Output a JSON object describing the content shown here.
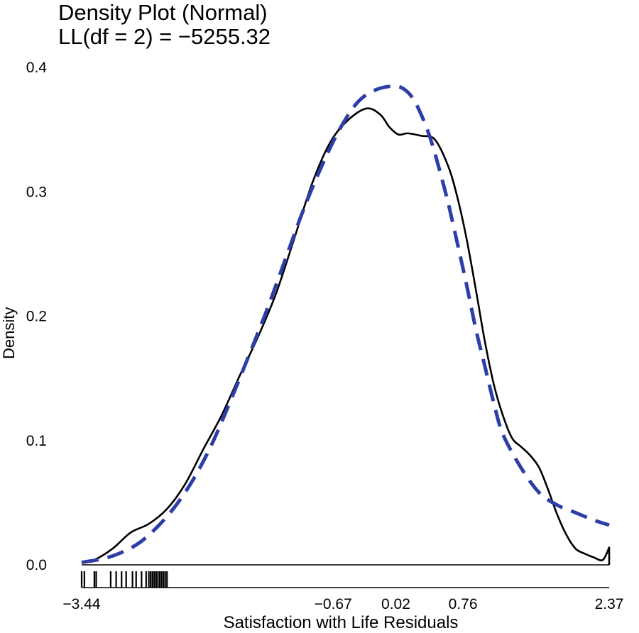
{
  "chart_data": {
    "type": "line",
    "title": "Density Plot (Normal)",
    "subtitle": "LL(df = 2) = −5255.32",
    "xlabel": "Satisfaction with Life Residuals",
    "ylabel": "Density",
    "xlim": [
      -3.44,
      2.37
    ],
    "ylim": [
      0,
      0.4
    ],
    "yticks": [
      0.0,
      0.1,
      0.2,
      0.3,
      0.4
    ],
    "ytick_labels": [
      "0.0",
      "0.1",
      "0.2",
      "0.3",
      "0.4"
    ],
    "xticks": [
      -3.44,
      -0.67,
      0.02,
      0.76,
      2.37
    ],
    "xtick_labels": [
      "−3.44",
      "−0.67",
      "0.02",
      "0.76",
      "2.37"
    ],
    "grid": false,
    "colors": {
      "empirical": "#000000",
      "normal": "#2e3ea8"
    },
    "series": [
      {
        "style": "solid",
        "x": [
          -3.44,
          -3.3,
          -3.1,
          -2.9,
          -2.7,
          -2.5,
          -2.3,
          -2.1,
          -1.9,
          -1.7,
          -1.5,
          -1.3,
          -1.1,
          -0.9,
          -0.7,
          -0.5,
          -0.3,
          -0.15,
          -0.05,
          0.05,
          0.15,
          0.3,
          0.45,
          0.6,
          0.7,
          0.8,
          0.9,
          1.0,
          1.1,
          1.2,
          1.3,
          1.4,
          1.5,
          1.6,
          1.7,
          1.8,
          1.9,
          2.0,
          2.1,
          2.2,
          2.3,
          2.37
        ],
        "y": [
          0.002,
          0.004,
          0.013,
          0.026,
          0.033,
          0.045,
          0.065,
          0.093,
          0.12,
          0.152,
          0.183,
          0.218,
          0.262,
          0.307,
          0.34,
          0.358,
          0.367,
          0.362,
          0.352,
          0.346,
          0.347,
          0.345,
          0.342,
          0.32,
          0.295,
          0.262,
          0.222,
          0.18,
          0.145,
          0.12,
          0.102,
          0.095,
          0.088,
          0.078,
          0.06,
          0.04,
          0.024,
          0.013,
          0.009,
          0.006,
          0.004,
          0.014
        ]
      },
      {
        "style": "dashed",
        "x": [
          -3.44,
          -3.2,
          -3.0,
          -2.8,
          -2.6,
          -2.4,
          -2.2,
          -2.0,
          -1.8,
          -1.6,
          -1.4,
          -1.2,
          -1.0,
          -0.8,
          -0.6,
          -0.4,
          -0.2,
          0.0,
          0.1,
          0.2,
          0.3,
          0.4,
          0.5,
          0.6,
          0.7,
          0.8,
          0.9,
          1.0,
          1.1,
          1.2,
          1.4,
          1.6,
          1.8,
          2.0,
          2.2,
          2.37
        ],
        "y": [
          0.002,
          0.005,
          0.01,
          0.018,
          0.031,
          0.048,
          0.07,
          0.098,
          0.132,
          0.168,
          0.205,
          0.245,
          0.285,
          0.32,
          0.35,
          0.372,
          0.382,
          0.385,
          0.383,
          0.376,
          0.362,
          0.343,
          0.318,
          0.29,
          0.258,
          0.225,
          0.19,
          0.16,
          0.13,
          0.105,
          0.078,
          0.058,
          0.048,
          0.042,
          0.036,
          0.032
        ]
      }
    ],
    "rug": [
      -3.44,
      -3.41,
      -3.3,
      -3.28,
      -3.12,
      -3.06,
      -3.0,
      -2.95,
      -2.88,
      -2.84,
      -2.78,
      -2.73,
      -2.7,
      -2.68,
      -2.66,
      -2.64,
      -2.62,
      -2.6,
      -2.58,
      -2.56,
      -2.54,
      -2.52,
      -2.5
    ]
  }
}
